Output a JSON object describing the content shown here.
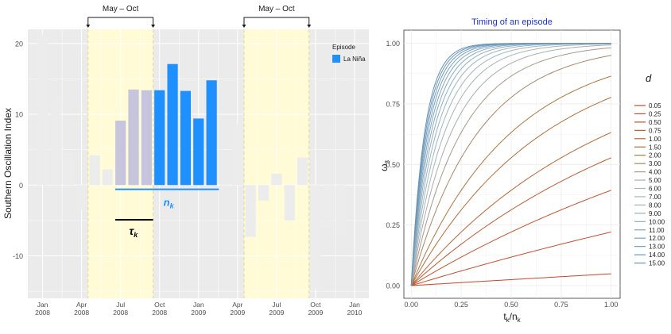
{
  "left_panel": {
    "ylabel": "Southern Oscillation Index",
    "legend_title": "Episode",
    "legend_label": "La Niña",
    "bracket_label": "May – Oct",
    "tau_label": "τ",
    "tau_sub": "k",
    "n_label": "n",
    "n_sub": "k"
  },
  "right_panel": {
    "title": "Timing of an episode",
    "ylabel": "ω",
    "ylabel_sub": "3",
    "xlabel": "t",
    "xlabel_sub1": "k",
    "xlabel_mid": "/n",
    "xlabel_sub2": "k",
    "legend_title": "d"
  },
  "colors": {
    "panel_bg": "#ebebeb",
    "grid": "#ffffff",
    "highlight": "#fffbd6",
    "neutral_bar": "#ececec",
    "pre_episode_bar": "#c7c5dd",
    "la_nina": "#1e90ff",
    "title_color": "#1f2fd1"
  },
  "chart_data": [
    {
      "type": "bar",
      "ylim": [
        -16,
        22
      ],
      "x_ticks": [
        {
          "month": 0,
          "label1": "Jan",
          "label2": "2008"
        },
        {
          "month": 3,
          "label1": "Apr",
          "label2": "2008"
        },
        {
          "month": 6,
          "label1": "Jul",
          "label2": "2008"
        },
        {
          "month": 9,
          "label1": "Oct",
          "label2": "2008"
        },
        {
          "month": 12,
          "label1": "Jan",
          "label2": "2009"
        },
        {
          "month": 15,
          "label1": "Apr",
          "label2": "2009"
        },
        {
          "month": 18,
          "label1": "Jul",
          "label2": "2009"
        },
        {
          "month": 21,
          "label1": "Oct",
          "label2": "2009"
        },
        {
          "month": 24,
          "label1": "Jan",
          "label2": "2010"
        }
      ],
      "y_ticks": [
        -10,
        0,
        10,
        20
      ],
      "windows": [
        {
          "from": "2008-05",
          "to": "2008-10"
        },
        {
          "from": "2009-05",
          "to": "2009-10"
        }
      ],
      "bars": [
        {
          "month": 0,
          "value": 21.3,
          "group": "neutral"
        },
        {
          "month": 1,
          "value": 12.2,
          "group": "neutral"
        },
        {
          "month": 2,
          "value": 4.5,
          "group": "neutral"
        },
        {
          "month": 3,
          "value": -3.5,
          "group": "neutral"
        },
        {
          "month": 4,
          "value": 4.2,
          "group": "neutral"
        },
        {
          "month": 5,
          "value": 2.2,
          "group": "neutral"
        },
        {
          "month": 6,
          "value": 9.1,
          "group": "pre"
        },
        {
          "month": 7,
          "value": 13.5,
          "group": "pre"
        },
        {
          "month": 8,
          "value": 13.4,
          "group": "pre"
        },
        {
          "month": 9,
          "value": 13.4,
          "group": "la_nina"
        },
        {
          "month": 10,
          "value": 17.1,
          "group": "la_nina"
        },
        {
          "month": 11,
          "value": 13.3,
          "group": "la_nina"
        },
        {
          "month": 12,
          "value": 9.4,
          "group": "la_nina"
        },
        {
          "month": 13,
          "value": 14.8,
          "group": "la_nina"
        },
        {
          "month": 14,
          "value": -0.4,
          "group": "neutral"
        },
        {
          "month": 15,
          "value": 8.6,
          "group": "neutral"
        },
        {
          "month": 16,
          "value": -7.3,
          "group": "neutral"
        },
        {
          "month": 17,
          "value": -2.2,
          "group": "neutral"
        },
        {
          "month": 18,
          "value": 1.6,
          "group": "neutral"
        },
        {
          "month": 19,
          "value": -5.0,
          "group": "neutral"
        },
        {
          "month": 20,
          "value": 3.9,
          "group": "neutral"
        },
        {
          "month": 21,
          "value": -14.6,
          "group": "neutral"
        },
        {
          "month": 22,
          "value": -6.0,
          "group": "neutral"
        },
        {
          "month": 23,
          "value": -7.0,
          "group": "neutral"
        }
      ],
      "n_k_span": {
        "from": "2008-07",
        "to": "2009-02",
        "y": -0.6
      },
      "tau_k_span": {
        "from": "2008-07",
        "to": "2008-10",
        "y": -4.9
      }
    },
    {
      "type": "line",
      "xlim": [
        0,
        1
      ],
      "ylim": [
        0,
        1
      ],
      "x_ticks": [
        0,
        0.25,
        0.5,
        0.75,
        1
      ],
      "x_tick_labels": [
        "0.00",
        "0.25",
        "0.50",
        "0.75",
        "1.00"
      ],
      "y_ticks": [
        0,
        0.25,
        0.5,
        0.75,
        1
      ],
      "y_tick_labels": [
        "0.00",
        "0.25",
        "0.50",
        "0.75",
        "1.00"
      ],
      "formula": "1 - exp(-d * x)",
      "series": [
        {
          "name": "0.05",
          "d": 0.05,
          "color": "#c5462c"
        },
        {
          "name": "0.25",
          "d": 0.25,
          "color": "#c24e2f"
        },
        {
          "name": "0.50",
          "d": 0.5,
          "color": "#bd5531"
        },
        {
          "name": "0.75",
          "d": 0.75,
          "color": "#b75d35"
        },
        {
          "name": "1.00",
          "d": 1.0,
          "color": "#b26638"
        },
        {
          "name": "1.50",
          "d": 1.5,
          "color": "#ad6f3d"
        },
        {
          "name": "2.00",
          "d": 2.0,
          "color": "#a87843"
        },
        {
          "name": "3.00",
          "d": 3.0,
          "color": "#a7866a"
        },
        {
          "name": "4.00",
          "d": 4.0,
          "color": "#a6988e"
        },
        {
          "name": "5.00",
          "d": 5.0,
          "color": "#a9abad"
        },
        {
          "name": "6.00",
          "d": 6.0,
          "color": "#a9b4b7"
        },
        {
          "name": "7.00",
          "d": 7.0,
          "color": "#a2b5bd"
        },
        {
          "name": "8.00",
          "d": 8.0,
          "color": "#9ab3bf"
        },
        {
          "name": "9.00",
          "d": 9.0,
          "color": "#92afc0"
        },
        {
          "name": "10.00",
          "d": 10.0,
          "color": "#8aaac0"
        },
        {
          "name": "11.00",
          "d": 11.0,
          "color": "#82a6bf"
        },
        {
          "name": "12.00",
          "d": 12.0,
          "color": "#7aa1bd"
        },
        {
          "name": "13.00",
          "d": 13.0,
          "color": "#739cbb"
        },
        {
          "name": "14.00",
          "d": 14.0,
          "color": "#6c97b8"
        },
        {
          "name": "15.00",
          "d": 15.0,
          "color": "#6592b5"
        }
      ]
    }
  ]
}
